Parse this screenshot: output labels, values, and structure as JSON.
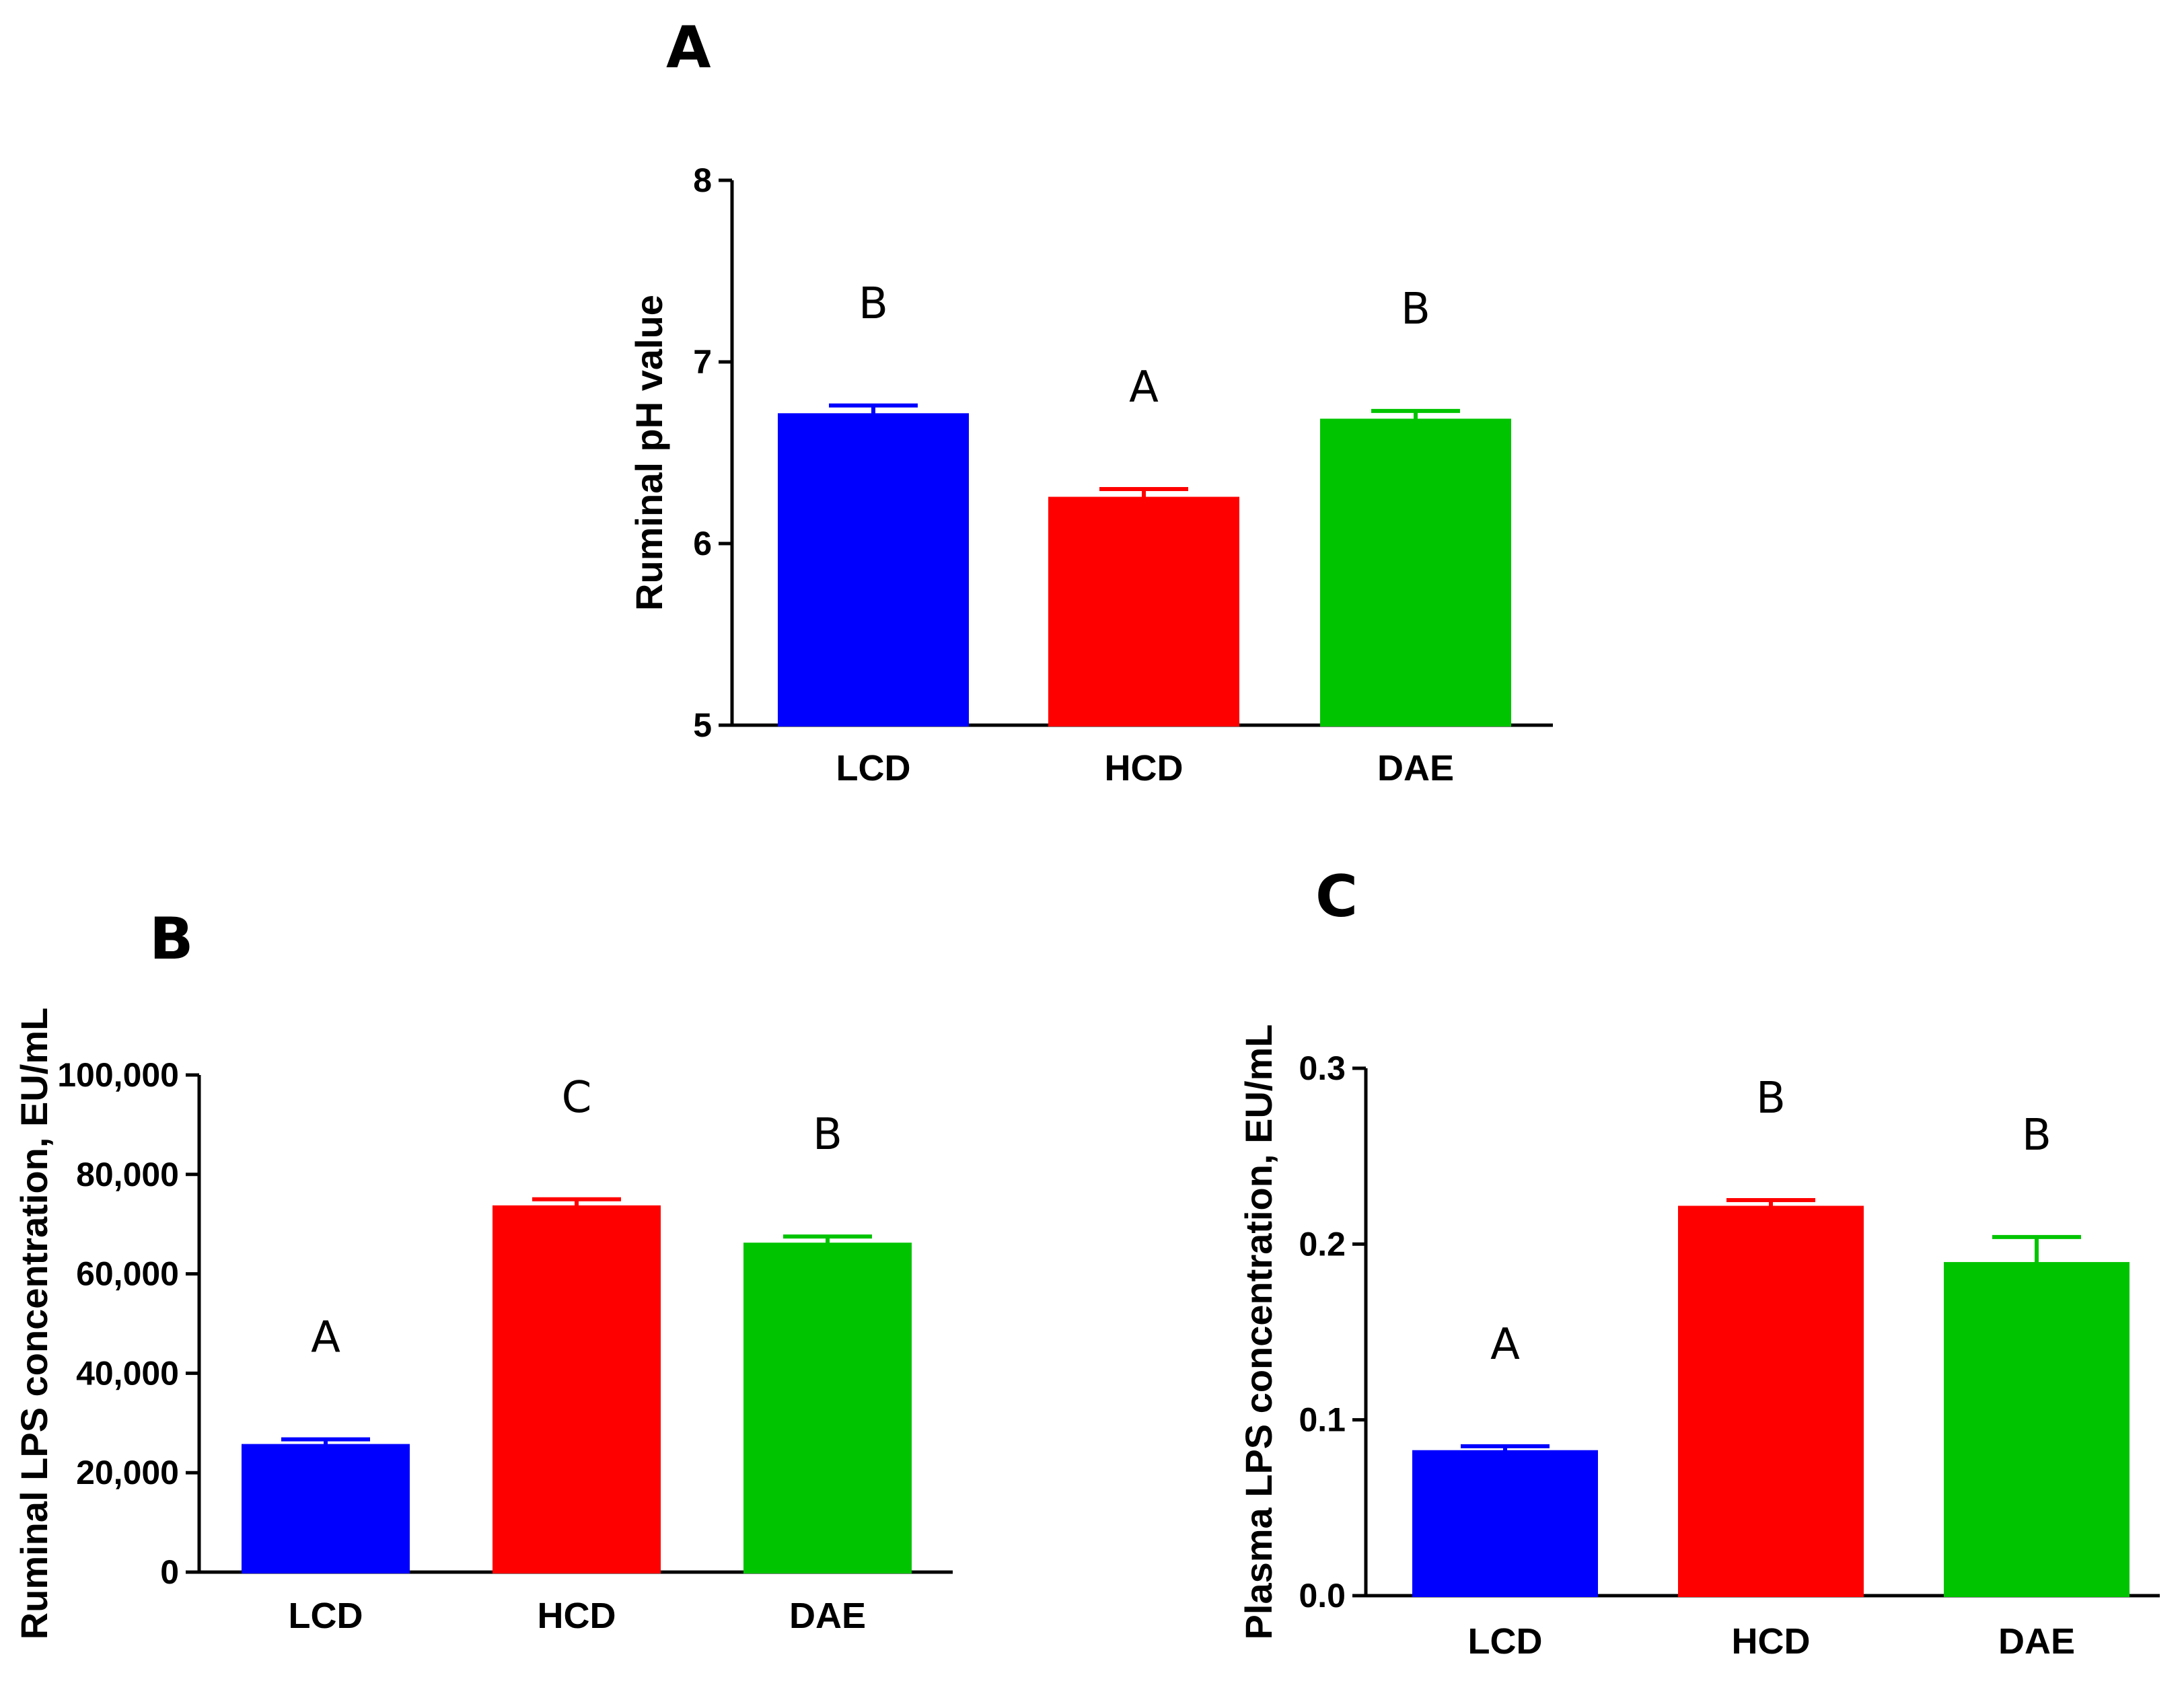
{
  "chart_data": [
    {
      "panel": "A",
      "type": "bar",
      "categories": [
        "LCD",
        "HCD",
        "DAE"
      ],
      "values": [
        6.71,
        6.25,
        6.68
      ],
      "errors": [
        0.05,
        0.05,
        0.05
      ],
      "significance": [
        "B",
        "A",
        "B"
      ],
      "colors": [
        "#0000ff",
        "#ff0000",
        "#00c400"
      ],
      "ylabel": "Ruminal pH value",
      "ylim": [
        5,
        8
      ],
      "yticks": [
        "5",
        "6",
        "7",
        "8"
      ],
      "ytick_values": [
        5,
        6,
        7,
        8
      ]
    },
    {
      "panel": "B",
      "type": "bar",
      "categories": [
        "LCD",
        "HCD",
        "DAE"
      ],
      "values": [
        25500,
        73500,
        66000
      ],
      "errors": [
        1200,
        1500,
        1500
      ],
      "significance": [
        "A",
        "C",
        "B"
      ],
      "colors": [
        "#0000ff",
        "#ff0000",
        "#00c400"
      ],
      "ylabel": "Ruminal LPS concentration, EU/mL",
      "ylim": [
        0,
        100000
      ],
      "yticks": [
        "0",
        "20,000",
        "40,000",
        "60,000",
        "80,000",
        "100,000"
      ],
      "ytick_values": [
        0,
        20000,
        40000,
        60000,
        80000,
        100000
      ]
    },
    {
      "panel": "C",
      "type": "bar",
      "categories": [
        "LCD",
        "HCD",
        "DAE"
      ],
      "values": [
        0.082,
        0.221,
        0.189
      ],
      "errors": [
        0.003,
        0.004,
        0.015
      ],
      "significance": [
        "A",
        "B",
        "B"
      ],
      "colors": [
        "#0000ff",
        "#ff0000",
        "#00c400"
      ],
      "ylabel": "Plasma LPS concentration, EU/mL",
      "ylim": [
        0,
        0.3
      ],
      "yticks": [
        "0.0",
        "0.1",
        "0.2",
        "0.3"
      ],
      "ytick_values": [
        0,
        0.1,
        0.2,
        0.3
      ]
    }
  ]
}
